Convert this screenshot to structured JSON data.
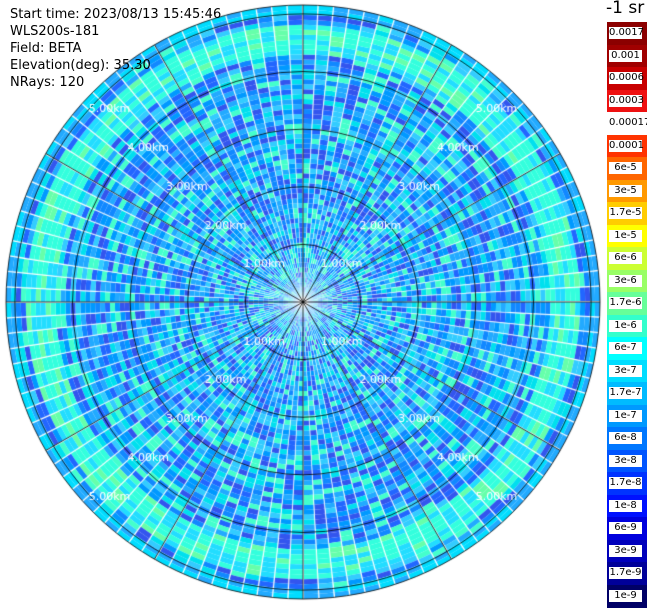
{
  "info": {
    "start_time": "Start time: 2023/08/13 15:45:46",
    "site": "WLS200s-181",
    "field": "Field: BETA",
    "elevation": "Elevation(deg): 35.30",
    "nrays": "NRays: 120"
  },
  "chart_data": {
    "type": "heatmap",
    "projection": "polar (PPI scan)",
    "elevation_deg": 35.3,
    "rays": 120,
    "max_range_km": 5.0,
    "range_ring_labels": [
      "1.00km",
      "2.00km",
      "3.00km",
      "4.00km",
      "5.00km"
    ],
    "radial_lines_every_deg": 30,
    "colorbar": {
      "title": "-1 sr",
      "labels": [
        "0.0017",
        "0.001",
        "0.0006",
        "0.0003",
        "0.00017",
        "0.0001",
        "6e-5",
        "3e-5",
        "1.7e-5",
        "1e-5",
        "6e-6",
        "3e-6",
        "1.7e-6",
        "1e-6",
        "6e-7",
        "3e-7",
        "1.7e-7",
        "1e-7",
        "6e-8",
        "3e-8",
        "1.7e-8",
        "1e-8",
        "6e-9",
        "3e-9",
        "1.7e-9",
        "1e-9"
      ],
      "colors": [
        "#8b0000",
        "#a00000",
        "#c80000",
        "#ee1111",
        "#ffffff",
        "#ff3300",
        "#ff6600",
        "#ff9900",
        "#ffcc00",
        "#ffff00",
        "#ccff33",
        "#99ff66",
        "#66ff99",
        "#33ffcc",
        "#00ffff",
        "#00ddff",
        "#00bbff",
        "#0099ff",
        "#0077ff",
        "#0055ff",
        "#0033ff",
        "#0011ff",
        "#0000dd",
        "#0000bb",
        "#000099",
        "#000066"
      ]
    },
    "value_range_note": "mostly 1e-7 to 3e-7, lighter ring near 4.5km"
  }
}
